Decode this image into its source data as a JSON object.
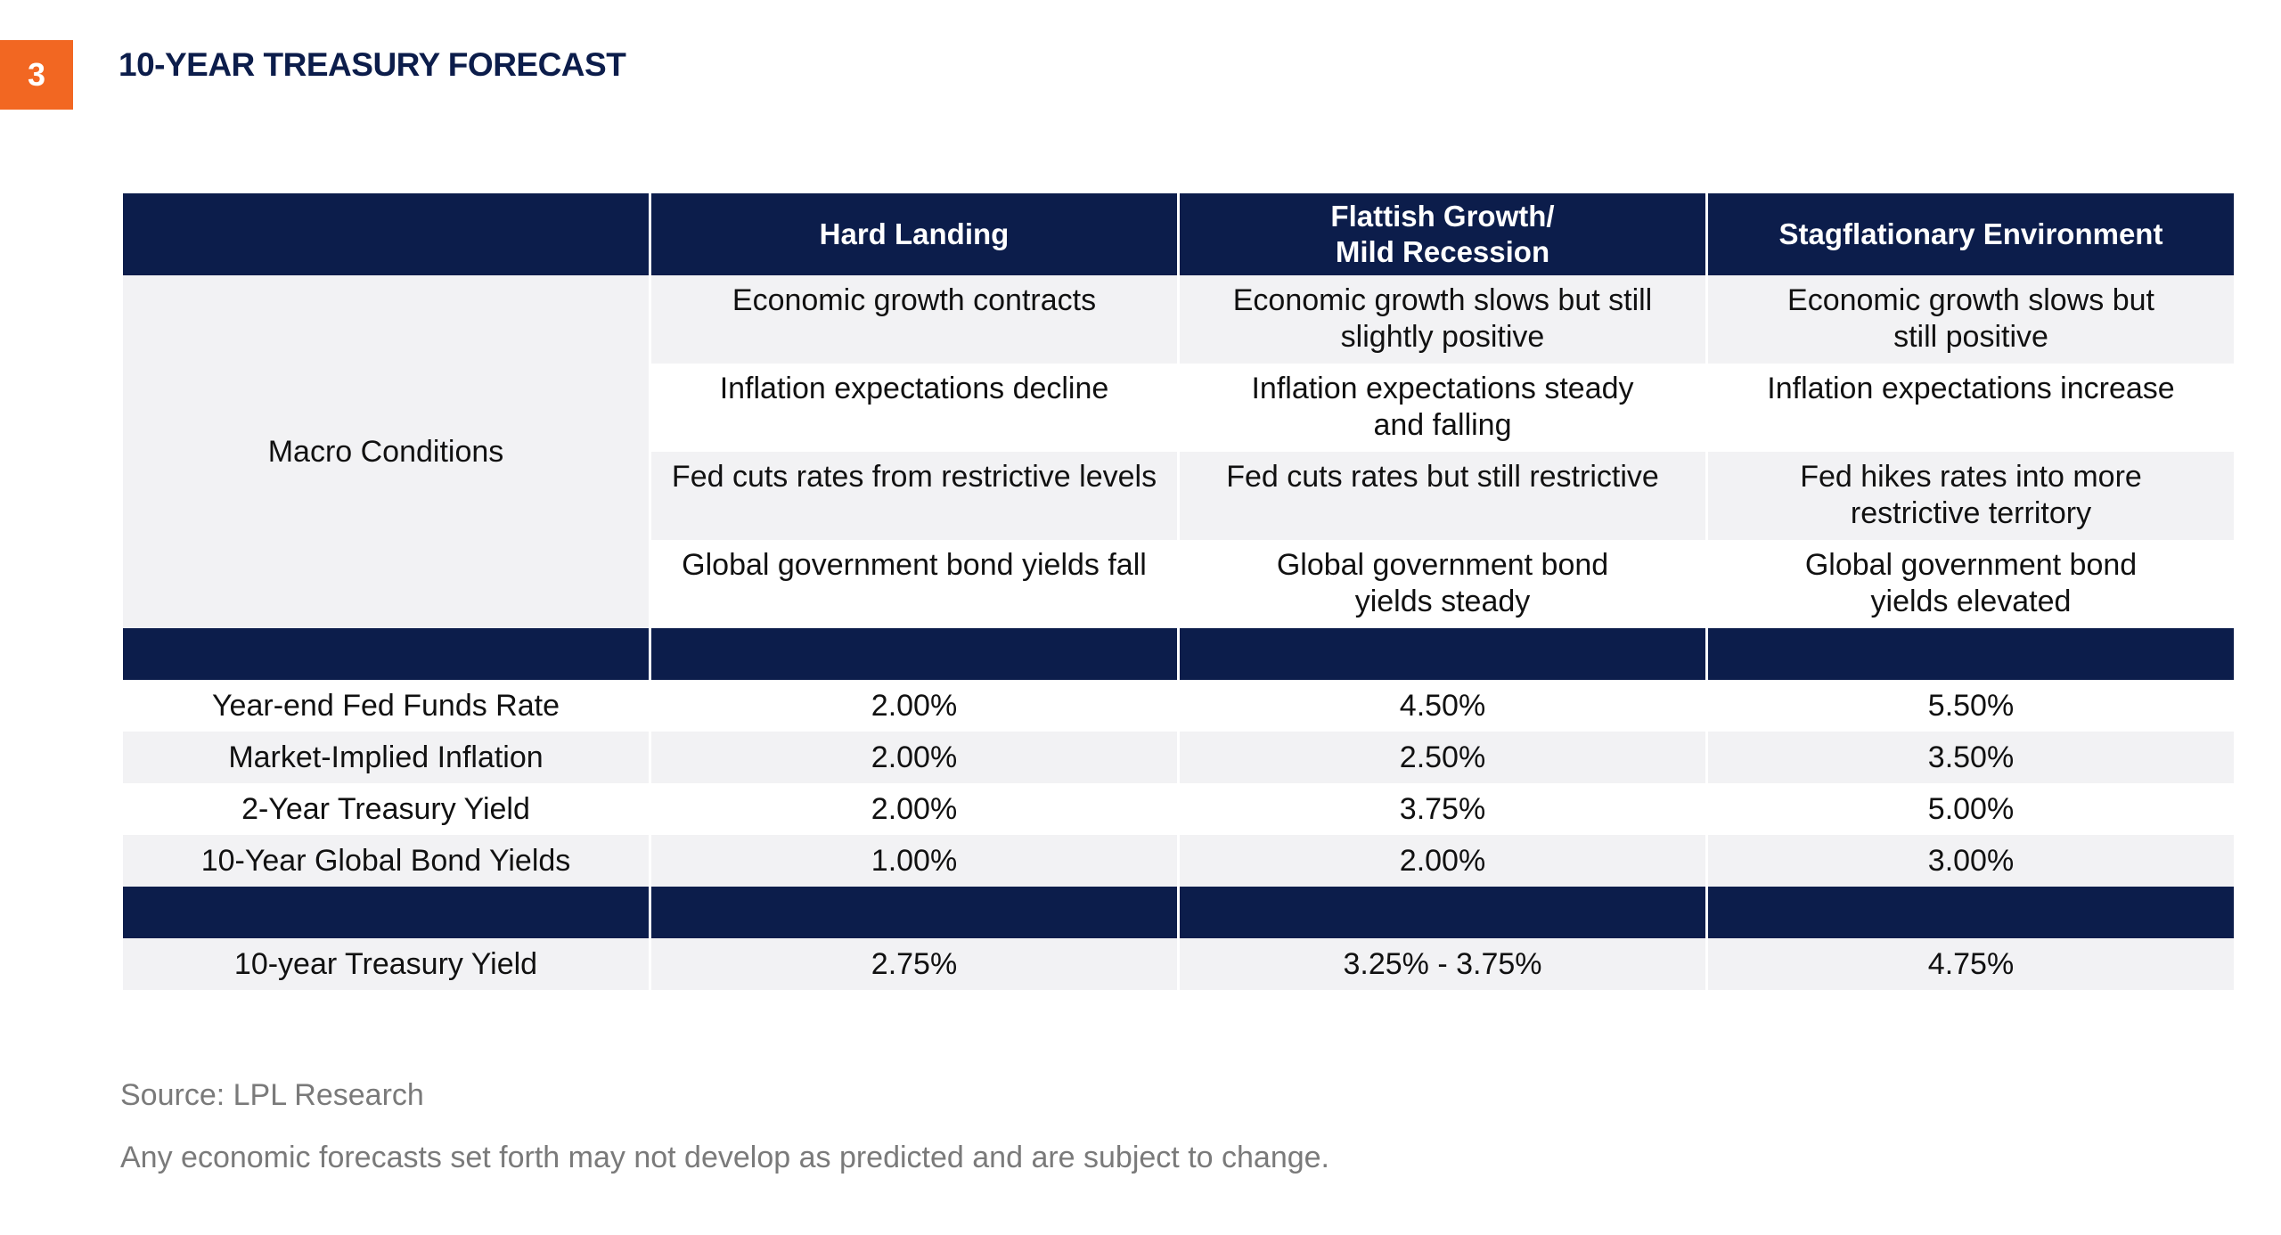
{
  "slide": {
    "number": "3",
    "title": "10-YEAR TREASURY FORECAST"
  },
  "table": {
    "headers": [
      "",
      "Hard Landing",
      "Flattish Growth/\nMild Recession",
      "Stagflationary Environment"
    ],
    "macro_label": "Macro Conditions",
    "macro_rows": [
      [
        "Economic growth contracts",
        "Economic growth slows but still\nslightly positive",
        "Economic growth slows but\nstill positive"
      ],
      [
        "Inflation expectations decline",
        "Inflation expectations steady\nand falling",
        "Inflation expectations increase"
      ],
      [
        "Fed cuts rates from restrictive levels",
        "Fed cuts rates but still restrictive",
        "Fed hikes rates into more\nrestrictive territory"
      ],
      [
        "Global government bond yields fall",
        "Global government bond\nyields steady",
        "Global government bond\nyields elevated"
      ]
    ],
    "assumption_rows": [
      [
        "Year-end Fed Funds Rate",
        "2.00%",
        "4.50%",
        "5.50%"
      ],
      [
        "Market-Implied Inflation",
        "2.00%",
        "2.50%",
        "3.50%"
      ],
      [
        "2-Year Treasury Yield",
        "2.00%",
        "3.75%",
        "5.00%"
      ],
      [
        "10-Year Global Bond Yields",
        "1.00%",
        "2.00%",
        "3.00%"
      ]
    ],
    "result_row": [
      "10-year Treasury Yield",
      "2.75%",
      "3.25% - 3.75%",
      "4.75%"
    ]
  },
  "footer": {
    "source": "Source: LPL Research",
    "disclaimer": "Any economic forecasts set forth may not develop as predicted and are subject to change."
  },
  "colors": {
    "accent_orange": "#f26722",
    "navy": "#0c1d4b",
    "row_shade": "#f2f2f4"
  }
}
